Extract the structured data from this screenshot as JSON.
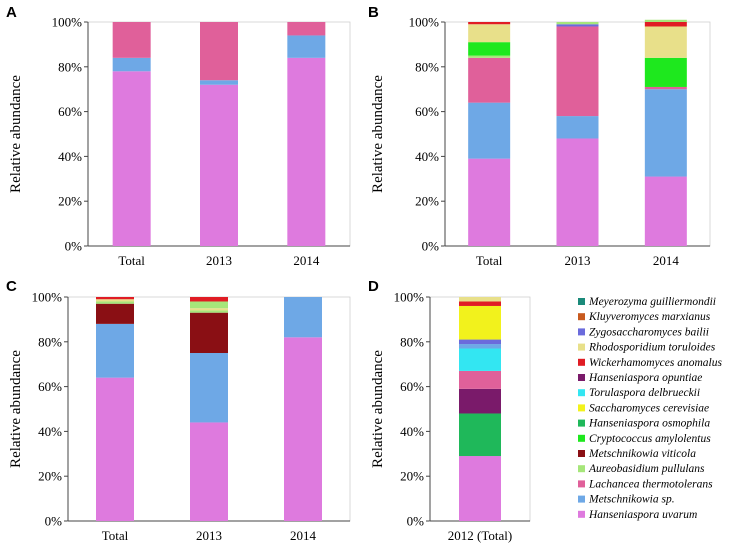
{
  "colors": {
    "Meyerozyma guilliermondii": "#1a8a7a",
    "Kluyveromyces marxianus": "#c85a1e",
    "Zygosaccharomyces bailii": "#6b6bdc",
    "Rhodosporidium toruloides": "#e8e08a",
    "Wickerhamomyces anomalus": "#e01c24",
    "Hanseniaspora opuntiae": "#7a1a6a",
    "Torulaspora delbrueckii": "#33e6f2",
    "Saccharomyces cerevisiae": "#f2f21c",
    "Hanseniaspora osmophila": "#1fb85a",
    "Cryptococcus amylolentus": "#1ee81e",
    "Metschnikowia viticola": "#8a0f14",
    "Aureobasidium pullulans": "#a6e67a",
    "Lachancea thermotolerans": "#e0609a",
    "Metschnikowia sp.": "#6ea8e6",
    "Hanseniaspora uvarum": "#de7ade"
  },
  "legend": {
    "entries": [
      "Meyerozyma guilliermondii",
      "Kluyveromyces marxianus",
      "Zygosaccharomyces bailii",
      "Rhodosporidium toruloides",
      "Wickerhamomyces anomalus",
      "Hanseniaspora opuntiae",
      "Torulaspora delbrueckii",
      "Saccharomyces cerevisiae",
      "Hanseniaspora osmophila",
      "Cryptococcus amylolentus",
      "Metschnikowia viticola",
      "Aureobasidium pullulans",
      "Lachancea thermotolerans",
      "Metschnikowia sp.",
      "Hanseniaspora uvarum"
    ]
  },
  "chart_data": [
    {
      "type": "bar",
      "panel": "A",
      "ylabel": "Relative abundance",
      "ylim": [
        0,
        100
      ],
      "yticks": [
        "0%",
        "20%",
        "40%",
        "60%",
        "80%",
        "100%"
      ],
      "categories": [
        "Total",
        "2013",
        "2014"
      ],
      "series": [
        {
          "name": "Hanseniaspora uvarum",
          "values": [
            78,
            72,
            84
          ]
        },
        {
          "name": "Metschnikowia sp.",
          "values": [
            6,
            2,
            10
          ]
        },
        {
          "name": "Lachancea thermotolerans",
          "values": [
            16,
            26,
            6
          ]
        }
      ]
    },
    {
      "type": "bar",
      "panel": "B",
      "ylabel": "Relative abundance",
      "ylim": [
        0,
        100
      ],
      "yticks": [
        "0%",
        "20%",
        "40%",
        "60%",
        "80%",
        "100%"
      ],
      "categories": [
        "Total",
        "2013",
        "2014"
      ],
      "series": [
        {
          "name": "Hanseniaspora uvarum",
          "values": [
            39,
            48,
            31
          ]
        },
        {
          "name": "Metschnikowia sp.",
          "values": [
            25,
            10,
            39
          ]
        },
        {
          "name": "Lachancea thermotolerans",
          "values": [
            20,
            40,
            1
          ]
        },
        {
          "name": "Aureobasidium pullulans",
          "values": [
            1,
            0,
            0
          ]
        },
        {
          "name": "Cryptococcus amylolentus",
          "values": [
            6,
            0,
            13
          ]
        },
        {
          "name": "Hanseniaspora osmophila",
          "values": [
            0,
            0,
            0
          ]
        },
        {
          "name": "Rhodosporidium toruloides",
          "values": [
            8,
            0,
            14
          ]
        },
        {
          "name": "Zygosaccharomyces bailii",
          "values": [
            0,
            1,
            0
          ]
        },
        {
          "name": "Wickerhamomyces anomalus",
          "values": [
            1,
            0,
            2
          ]
        },
        {
          "name": "Metschnikowia viticola",
          "values": [
            0,
            0,
            0
          ]
        },
        {
          "name": "Aureobasidium pullulans",
          "values": [
            0,
            1,
            1
          ]
        }
      ]
    },
    {
      "type": "bar",
      "panel": "C",
      "ylabel": "Relative abundance",
      "ylim": [
        0,
        100
      ],
      "yticks": [
        "0%",
        "20%",
        "40%",
        "60%",
        "80%",
        "100%"
      ],
      "categories": [
        "Total",
        "2013",
        "2014"
      ],
      "series": [
        {
          "name": "Hanseniaspora uvarum",
          "values": [
            64,
            44,
            82
          ]
        },
        {
          "name": "Metschnikowia sp.",
          "values": [
            24,
            31,
            18
          ]
        },
        {
          "name": "Lachancea thermotolerans",
          "values": [
            0,
            0,
            0
          ]
        },
        {
          "name": "Metschnikowia viticola",
          "values": [
            9,
            18,
            0
          ]
        },
        {
          "name": "Aureobasidium pullulans",
          "values": [
            1,
            1,
            0
          ]
        },
        {
          "name": "Rhodosporidium toruloides",
          "values": [
            1,
            1,
            0
          ]
        },
        {
          "name": "Aureobasidium pullulans",
          "values": [
            0,
            3,
            0
          ]
        },
        {
          "name": "Wickerhamomyces anomalus",
          "values": [
            1,
            2,
            0
          ]
        }
      ]
    },
    {
      "type": "bar",
      "panel": "D",
      "ylabel": "Relative abundance",
      "ylim": [
        0,
        100
      ],
      "yticks": [
        "0%",
        "20%",
        "40%",
        "60%",
        "80%",
        "100%"
      ],
      "categories": [
        "2012 (Total)"
      ],
      "series": [
        {
          "name": "Hanseniaspora uvarum",
          "values": [
            29
          ]
        },
        {
          "name": "Hanseniaspora osmophila",
          "values": [
            19
          ]
        },
        {
          "name": "Hanseniaspora opuntiae",
          "values": [
            11
          ]
        },
        {
          "name": "Lachancea thermotolerans",
          "values": [
            8
          ]
        },
        {
          "name": "Torulaspora delbrueckii",
          "values": [
            10
          ]
        },
        {
          "name": "Metschnikowia sp.",
          "values": [
            2
          ]
        },
        {
          "name": "Zygosaccharomyces bailii",
          "values": [
            2
          ]
        },
        {
          "name": "Saccharomyces cerevisiae",
          "values": [
            15
          ]
        },
        {
          "name": "Wickerhamomyces anomalus",
          "values": [
            2
          ]
        },
        {
          "name": "Rhodosporidium toruloides",
          "values": [
            2
          ]
        }
      ]
    }
  ]
}
